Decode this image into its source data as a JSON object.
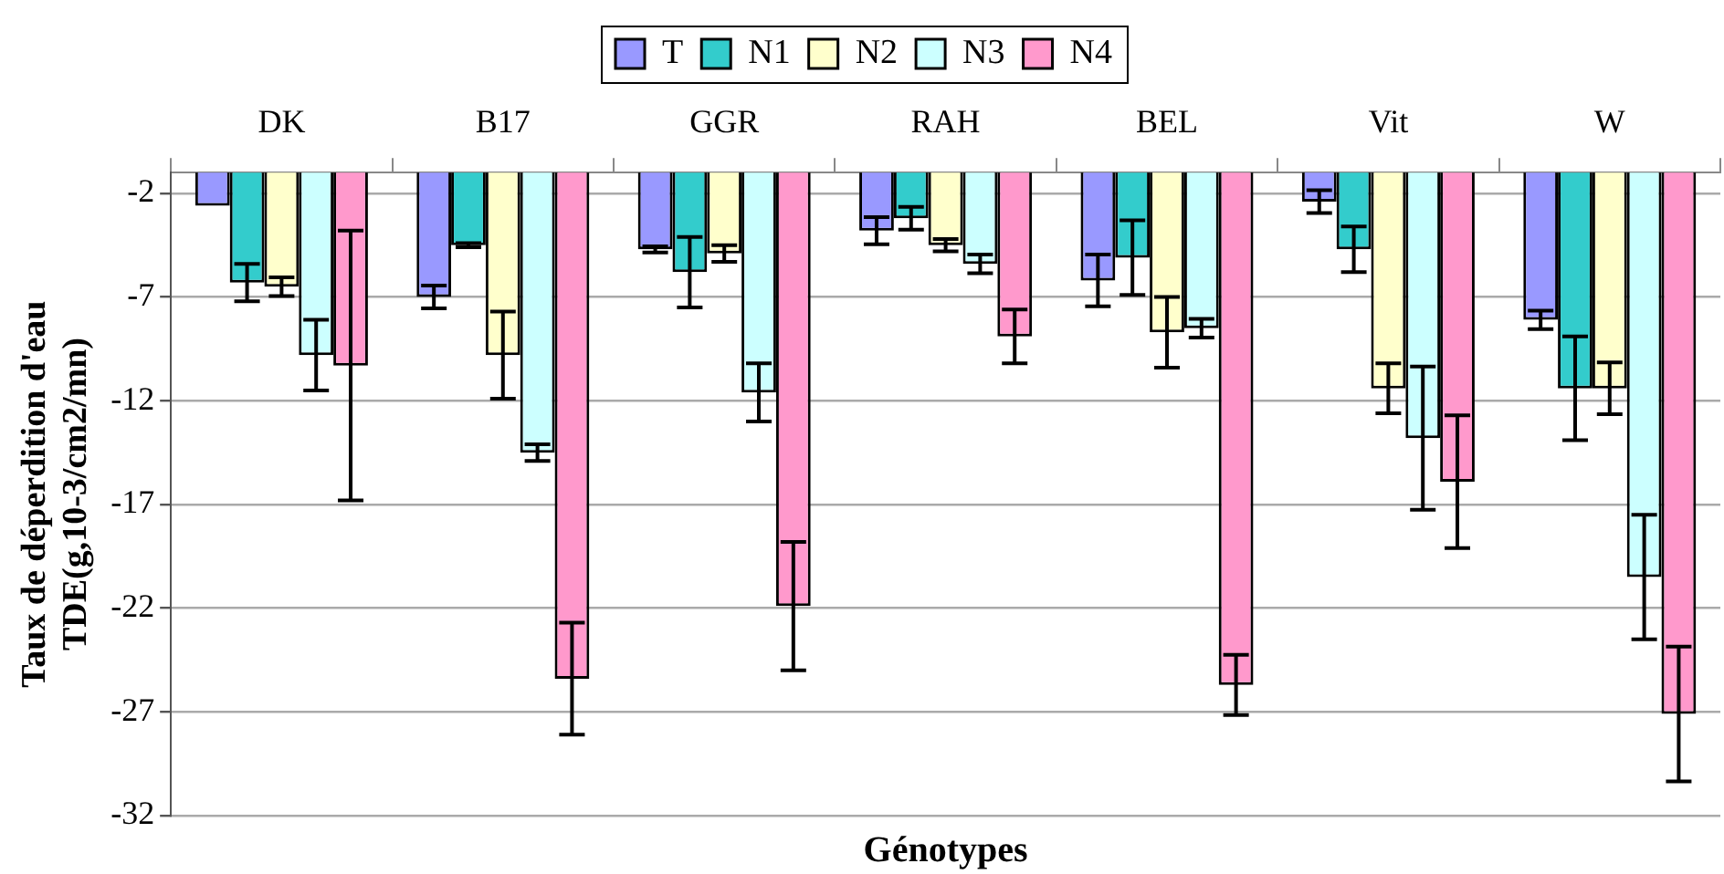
{
  "chart_data": {
    "type": "bar",
    "xlabel": "Génotypes",
    "ylabel": "Taux de déperdition d'eau\nTDE(g,10-3/cm2/mn)",
    "categories": [
      "DK",
      "B17",
      "GGR",
      "RAH",
      "BEL",
      "Vit",
      "W"
    ],
    "series": [
      {
        "name": "T",
        "color": "#9999ff",
        "values": [
          -2.6,
          -7.0,
          -4.7,
          -3.8,
          -6.2,
          -2.4,
          -8.1
        ],
        "errors": [
          null,
          0.55,
          0.15,
          0.65,
          1.25,
          0.55,
          0.45
        ]
      },
      {
        "name": "N1",
        "color": "#33cccc",
        "values": [
          -6.3,
          -4.5,
          -5.8,
          -3.2,
          -5.1,
          -4.7,
          -11.4
        ],
        "errors": [
          0.9,
          0.1,
          1.7,
          0.55,
          1.8,
          1.1,
          2.5
        ]
      },
      {
        "name": "N2",
        "color": "#ffffcc",
        "values": [
          -6.5,
          -9.8,
          -4.9,
          -4.5,
          -8.7,
          -11.4,
          -11.4
        ],
        "errors": [
          0.45,
          2.1,
          0.4,
          0.3,
          1.7,
          1.2,
          1.25
        ]
      },
      {
        "name": "N3",
        "color": "#ccffff",
        "values": [
          -9.8,
          -14.5,
          -11.6,
          -5.4,
          -8.5,
          -13.8,
          -20.5
        ],
        "errors": [
          1.7,
          0.4,
          1.4,
          0.45,
          0.45,
          3.45,
          3.0
        ]
      },
      {
        "name": "N4",
        "color": "#ff99cc",
        "values": [
          -10.3,
          -25.4,
          -21.9,
          -8.9,
          -25.7,
          -15.9,
          -27.1
        ],
        "errors": [
          6.5,
          2.7,
          3.1,
          1.3,
          1.45,
          3.2,
          3.25
        ]
      }
    ],
    "ylim": [
      -32,
      -1
    ],
    "yticks": [
      -2,
      -7,
      -12,
      -17,
      -22,
      -27,
      -32
    ],
    "grid": "y",
    "legend": "top"
  }
}
